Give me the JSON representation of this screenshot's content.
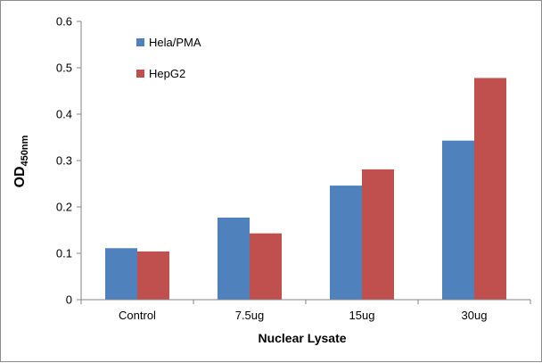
{
  "chart_data": {
    "type": "bar",
    "categories": [
      "Control",
      "7.5ug",
      "15ug",
      "30ug"
    ],
    "series": [
      {
        "name": "Hela/PMA",
        "color": "#4f81bd",
        "values": [
          0.111,
          0.177,
          0.246,
          0.343
        ]
      },
      {
        "name": "HepG2",
        "color": "#c0504d",
        "values": [
          0.104,
          0.143,
          0.281,
          0.478
        ]
      }
    ],
    "xlabel": "Nuclear Lysate",
    "ylabel": {
      "main": "OD",
      "subscript": "450nm"
    },
    "ylim": [
      0,
      0.6
    ],
    "yticks": [
      "0",
      "0.1",
      "0.2",
      "0.3",
      "0.4",
      "0.5",
      "0.6"
    ],
    "ytick_values": [
      0,
      0.1,
      0.2,
      0.3,
      0.4,
      0.5,
      0.6
    ],
    "grid": false,
    "legend_position": "top-left"
  }
}
